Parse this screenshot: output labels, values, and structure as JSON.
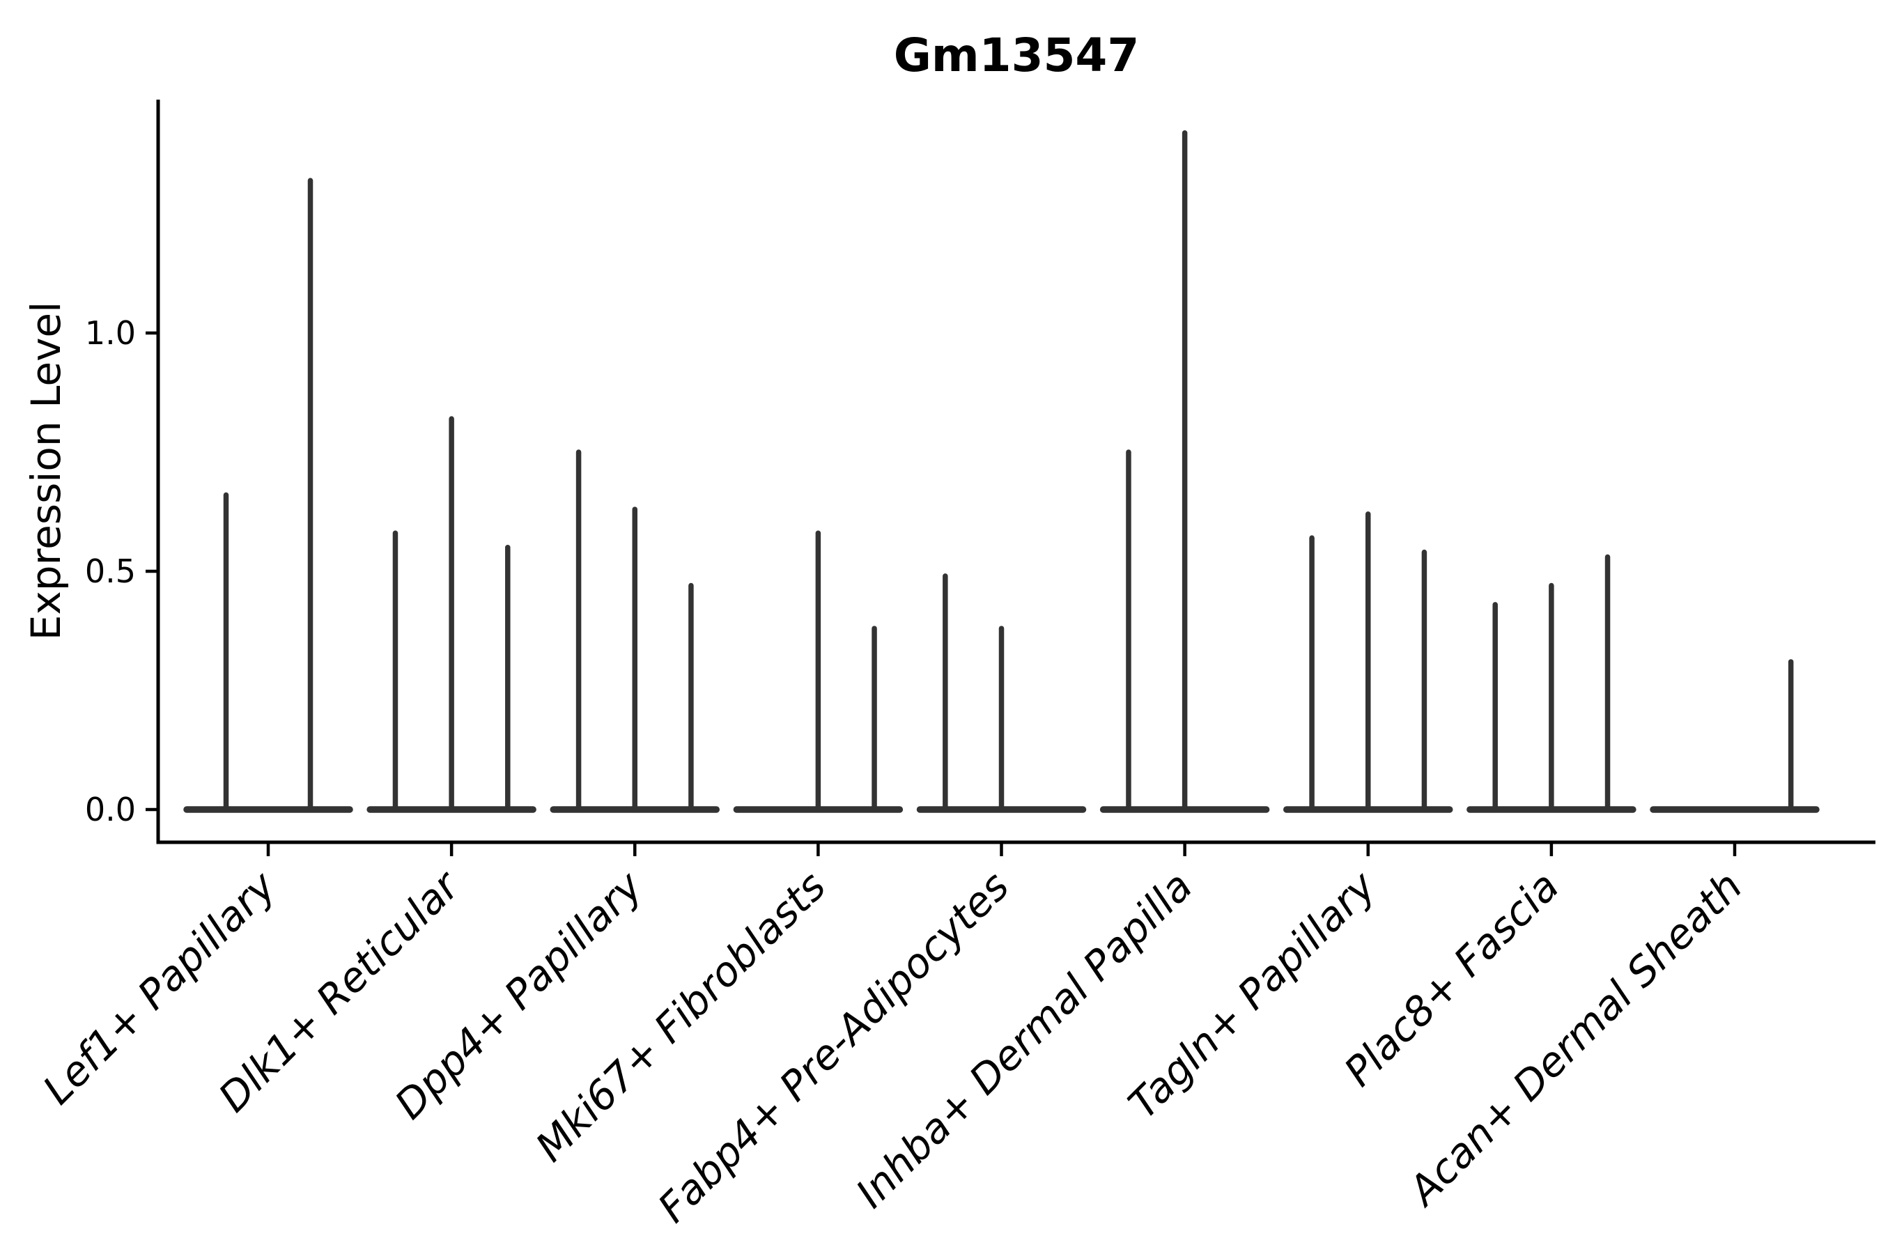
{
  "chart_data": {
    "type": "violin",
    "title": "Gm13547",
    "ylabel": "Expression Level",
    "xlabel": "",
    "legend": null,
    "grid": false,
    "background": "#ffffff",
    "axis_color": "#000000",
    "violin_color": "#333333",
    "ylim": [
      -0.07,
      1.49
    ],
    "yticks": [
      {
        "value": 0.0,
        "label": "0.0"
      },
      {
        "value": 0.5,
        "label": "0.5"
      },
      {
        "value": 1.0,
        "label": "1.0"
      }
    ],
    "encoding_note": "Each category shows 2-3 razor-thin violins of Expression Level: a flat base at 0 with a vertical spike up to the listed maximum; 0 means a completely flat violin (no spike).",
    "categories": [
      "Lef1+ Papillary",
      "Dlk1+ Reticular",
      "Dpp4+ Papillary",
      "Mki67+ Fibroblasts",
      "Fabp4+ Pre-Adipocytes",
      "Inhba+ Dermal Papilla",
      "Tagln+ Papillary",
      "Plac8+ Fascia",
      "Acan+ Dermal Sheath"
    ],
    "groups": [
      {
        "label": "Lef1+ Papillary",
        "violin_maxima": [
          0.66,
          1.32
        ]
      },
      {
        "label": "Dlk1+ Reticular",
        "violin_maxima": [
          0.58,
          0.82,
          0.55
        ]
      },
      {
        "label": "Dpp4+ Papillary",
        "violin_maxima": [
          0.75,
          0.63,
          0.47
        ]
      },
      {
        "label": "Mki67+ Fibroblasts",
        "violin_maxima": [
          0,
          0.58,
          0.38
        ]
      },
      {
        "label": "Fabp4+ Pre-Adipocytes",
        "violin_maxima": [
          0.49,
          0.38,
          0
        ]
      },
      {
        "label": "Inhba+ Dermal Papilla",
        "violin_maxima": [
          0.75,
          1.42,
          0
        ]
      },
      {
        "label": "Tagln+ Papillary",
        "violin_maxima": [
          0.57,
          0.62,
          0.54
        ]
      },
      {
        "label": "Plac8+ Fascia",
        "violin_maxima": [
          0.43,
          0.47,
          0.53
        ]
      },
      {
        "label": "Acan+ Dermal Sheath",
        "violin_maxima": [
          0,
          0,
          0.31
        ]
      }
    ]
  }
}
